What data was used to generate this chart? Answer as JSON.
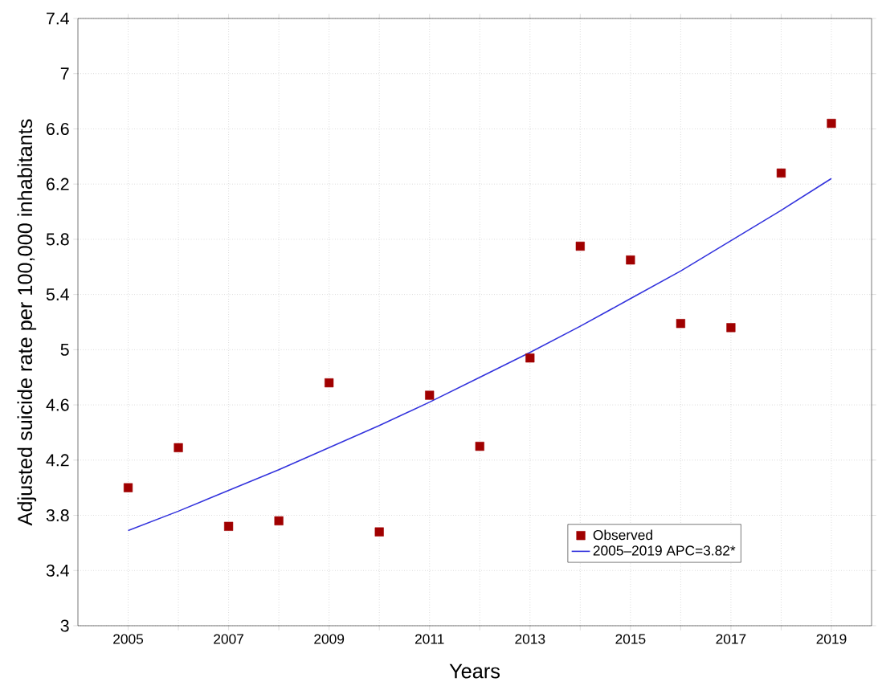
{
  "chart_data": {
    "type": "scatter",
    "xlabel": "Years",
    "ylabel": "Adjusted suicide rate per 100,000 inhabitants",
    "series": [
      {
        "name": "Observed",
        "color": "#a00000",
        "marker": "square",
        "x": [
          2005,
          2006,
          2007,
          2008,
          2009,
          2010,
          2011,
          2012,
          2013,
          2014,
          2015,
          2016,
          2017,
          2018,
          2019
        ],
        "values": [
          4.0,
          4.29,
          3.72,
          3.76,
          4.76,
          3.68,
          4.67,
          4.3,
          4.94,
          5.75,
          5.65,
          5.19,
          5.16,
          6.28,
          6.64
        ]
      },
      {
        "name": "2005–2019 APC=3.82*",
        "type": "line",
        "color": "#3333dd",
        "marker": "none",
        "line_style": "solid",
        "x": [
          2005,
          2006,
          2007,
          2008,
          2009,
          2010,
          2011,
          2012,
          2013,
          2014,
          2015,
          2016,
          2017,
          2018,
          2019
        ],
        "values": [
          3.69,
          3.83,
          3.98,
          4.13,
          4.29,
          4.45,
          4.62,
          4.8,
          4.98,
          5.17,
          5.37,
          5.57,
          5.79,
          6.01,
          6.24
        ]
      }
    ],
    "xlim": [
      2004,
      2019.8
    ],
    "xticks": [
      2005,
      {
        "value": 2006,
        "label": null
      },
      2007,
      {
        "value": 2008,
        "label": null
      },
      2009,
      {
        "value": 2010,
        "label": null
      },
      2011,
      {
        "value": 2012,
        "label": null
      },
      2013,
      {
        "value": 2014,
        "label": null
      },
      2015,
      {
        "value": 2016,
        "label": null
      },
      2017,
      {
        "value": 2018,
        "label": null
      },
      2019
    ],
    "ylim": [
      3,
      7.4
    ],
    "yticks": [
      3,
      3.4,
      3.8,
      4.2,
      4.6,
      5,
      5.4,
      5.8,
      6.2,
      6.6,
      7,
      7.4
    ],
    "grid": true,
    "legend": "bottom right"
  }
}
